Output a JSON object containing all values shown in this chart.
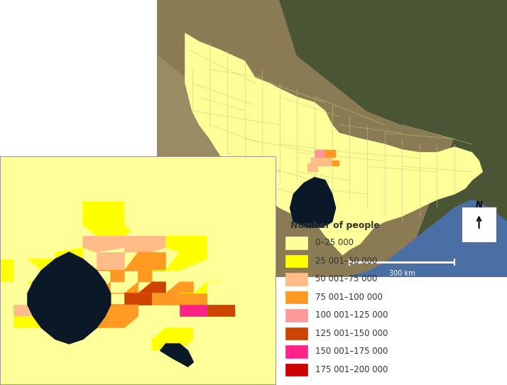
{
  "legend_title": "Number of people",
  "legend_entries": [
    {
      "label": "0–25 000",
      "color": "#FFFF99"
    },
    {
      "label": "25 001–50 000",
      "color": "#FFFF00"
    },
    {
      "label": "50 001–75 000",
      "color": "#FFBB88"
    },
    {
      "label": "75 001–100 000",
      "color": "#FF9922"
    },
    {
      "label": "100 001–125 000",
      "color": "#FF9999"
    },
    {
      "label": "125 001–150 000",
      "color": "#CC4400"
    },
    {
      "label": "150 001–175 000",
      "color": "#FF2288"
    },
    {
      "label": "175 001–200 000",
      "color": "#CC0000"
    }
  ],
  "scale_bar_label": "300 km",
  "north_label": "N",
  "background_color": "#ffffff",
  "figure_width": 7.14,
  "figure_height": 5.42,
  "dpi": 100,
  "satellite_brown": "#8B7B55",
  "satellite_dark_green": "#4A5535",
  "satellite_light_brown": "#9B8B65",
  "ocean_color": "#4A6FA5",
  "ocean_dark": "#1A2A4A",
  "vic_yellow": "#FFFF99",
  "lga_border": "#AAAAAA",
  "inset_border": "#888888"
}
